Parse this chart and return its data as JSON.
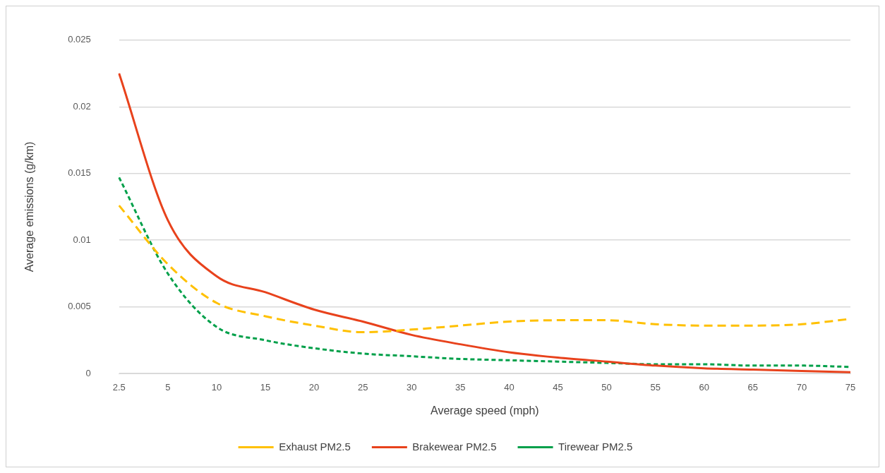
{
  "chart_data": {
    "type": "line",
    "xlabel": "Average speed (mph)",
    "ylabel": "Average emissions (g/km)",
    "categories": [
      "2.5",
      "5",
      "10",
      "15",
      "20",
      "25",
      "30",
      "35",
      "40",
      "45",
      "50",
      "55",
      "60",
      "65",
      "70",
      "75"
    ],
    "series": [
      {
        "name": "Exhaust PM2.5",
        "color": "#ffc000",
        "line_style": "dashed",
        "values": [
          0.0126,
          0.0082,
          0.0053,
          0.0043,
          0.0036,
          0.0031,
          0.0033,
          0.0036,
          0.0039,
          0.004,
          0.004,
          0.0037,
          0.0036,
          0.0036,
          0.0037,
          0.0041
        ]
      },
      {
        "name": "Brakewear PM2.5",
        "color": "#e8421c",
        "line_style": "solid",
        "values": [
          0.0225,
          0.0115,
          0.0073,
          0.0061,
          0.0048,
          0.0039,
          0.0029,
          0.0022,
          0.0016,
          0.0012,
          0.0009,
          0.0006,
          0.0004,
          0.0003,
          0.0002,
          0.0001
        ]
      },
      {
        "name": "Tirewear PM2.5",
        "color": "#00a04a",
        "line_style": "dotted",
        "values": [
          0.0147,
          0.0075,
          0.0035,
          0.0025,
          0.0019,
          0.0015,
          0.0013,
          0.0011,
          0.001,
          0.0009,
          0.0008,
          0.0007,
          0.0007,
          0.0006,
          0.0006,
          0.0005
        ]
      }
    ],
    "ylim": [
      0,
      0.025
    ],
    "yticks": [
      0,
      0.005,
      0.01,
      0.015,
      0.02,
      0.025
    ],
    "grid": "y",
    "legend": "bottom",
    "marker": "none"
  }
}
